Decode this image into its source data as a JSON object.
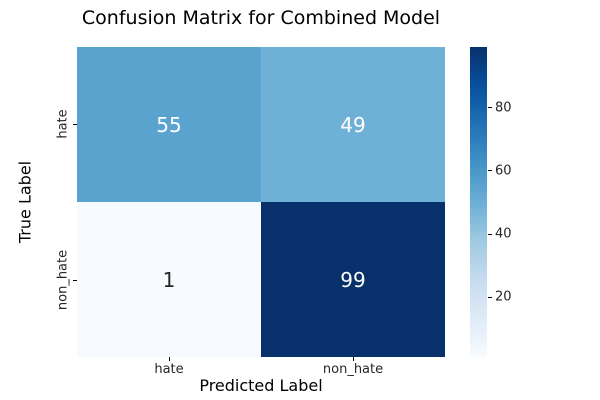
{
  "chart_data": {
    "type": "heatmap",
    "title": "Confusion Matrix for Combined Model",
    "xlabel": "Predicted Label",
    "ylabel": "True Label",
    "x_categories": [
      "hate",
      "non_hate"
    ],
    "y_categories": [
      "hate",
      "non_hate"
    ],
    "matrix": [
      [
        55,
        49
      ],
      [
        1,
        99
      ]
    ],
    "vmin": 1,
    "vmax": 99,
    "colormap": "Blues",
    "grid": false,
    "legend_position": "right-colorbar",
    "colorbar_ticks": [
      20,
      40,
      60,
      80
    ],
    "cell_colors": [
      [
        "#5ba3cf",
        "#6fb0d7"
      ],
      [
        "#f7fbff",
        "#08306b"
      ]
    ],
    "cell_text_colors": [
      [
        "#ffffff",
        "#ffffff"
      ],
      [
        "#262626",
        "#ffffff"
      ]
    ],
    "colorbar_top_color": "#08306b",
    "colorbar_bottom_color": "#f7fbff",
    "tick_color": "#000000"
  }
}
